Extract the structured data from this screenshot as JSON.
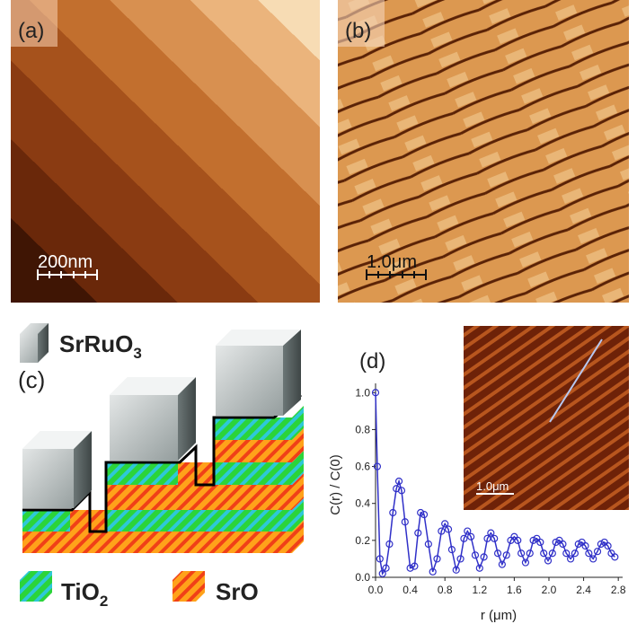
{
  "panels": {
    "a": {
      "label": "(a)",
      "scale_bar": "200nm"
    },
    "b": {
      "label": "(b)",
      "scale_bar": "1.0μm"
    },
    "c": {
      "label": "(c)",
      "cube_legend": {
        "text": "SrRuO",
        "sub": "3"
      },
      "legend": [
        {
          "text": "TiO",
          "sub": "2"
        },
        {
          "text": "SrO"
        }
      ]
    }
  },
  "chart_data": {
    "type": "line",
    "label": "(d)",
    "xlabel": "r (μm)",
    "ylabel": "C(r) / C(0)",
    "inset_scale_bar": "1.0μm",
    "x": [
      0,
      0.02,
      0.05,
      0.08,
      0.12,
      0.16,
      0.2,
      0.24,
      0.27,
      0.3,
      0.34,
      0.4,
      0.45,
      0.49,
      0.52,
      0.56,
      0.61,
      0.66,
      0.71,
      0.76,
      0.8,
      0.84,
      0.88,
      0.93,
      0.98,
      1.02,
      1.06,
      1.1,
      1.15,
      1.2,
      1.25,
      1.29,
      1.33,
      1.37,
      1.41,
      1.46,
      1.51,
      1.56,
      1.6,
      1.64,
      1.68,
      1.73,
      1.78,
      1.82,
      1.86,
      1.9,
      1.94,
      1.99,
      2.04,
      2.08,
      2.12,
      2.16,
      2.2,
      2.25,
      2.3,
      2.34,
      2.38,
      2.42,
      2.46,
      2.51,
      2.56,
      2.6,
      2.64,
      2.68,
      2.72,
      2.76
    ],
    "series": [
      {
        "color": "#3030c8",
        "values": [
          1.0,
          0.6,
          0.1,
          0.02,
          0.05,
          0.18,
          0.35,
          0.48,
          0.52,
          0.47,
          0.3,
          0.05,
          0.06,
          0.24,
          0.35,
          0.34,
          0.18,
          0.03,
          0.1,
          0.25,
          0.29,
          0.26,
          0.15,
          0.04,
          0.1,
          0.21,
          0.25,
          0.22,
          0.12,
          0.05,
          0.11,
          0.21,
          0.24,
          0.21,
          0.13,
          0.07,
          0.12,
          0.2,
          0.22,
          0.2,
          0.13,
          0.08,
          0.13,
          0.2,
          0.21,
          0.19,
          0.13,
          0.09,
          0.13,
          0.19,
          0.2,
          0.18,
          0.13,
          0.1,
          0.13,
          0.18,
          0.19,
          0.17,
          0.13,
          0.1,
          0.14,
          0.18,
          0.19,
          0.17,
          0.13,
          0.11
        ]
      }
    ],
    "xlim": [
      0,
      2.85
    ],
    "ylim": [
      0,
      1.05
    ],
    "xticks": [
      {
        "value": 0,
        "label": "0.0"
      },
      0.4,
      0.8,
      1.2,
      1.6,
      {
        "value": 2,
        "label": "2.0"
      },
      2.4,
      2.8
    ],
    "yticks": [
      {
        "value": 0,
        "label": "0.0"
      },
      0.2,
      0.4,
      0.6,
      0.8,
      {
        "value": 1,
        "label": "1.0"
      }
    ]
  }
}
